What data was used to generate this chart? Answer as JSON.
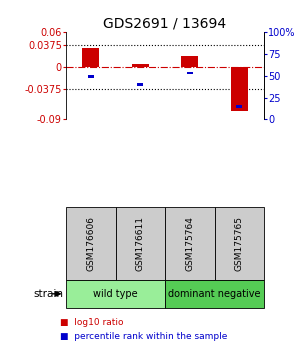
{
  "title": "GDS2691 / 13694",
  "samples": [
    "GSM176606",
    "GSM176611",
    "GSM175764",
    "GSM175765"
  ],
  "log10_ratio": [
    0.032,
    0.005,
    0.018,
    -0.075
  ],
  "percentile_rank": [
    49,
    40,
    53,
    15
  ],
  "ylim_left": [
    -0.09,
    0.06
  ],
  "ylim_right": [
    0,
    100
  ],
  "yticks_left": [
    -0.09,
    -0.0375,
    0,
    0.0375,
    0.06
  ],
  "yticks_right": [
    0,
    25,
    50,
    75,
    100
  ],
  "ytick_labels_left": [
    "-0.09",
    "-0.0375",
    "0",
    "0.0375",
    "0.06"
  ],
  "ytick_labels_right": [
    "0",
    "25",
    "50",
    "75",
    "100%"
  ],
  "hlines": [
    -0.0375,
    0.0375
  ],
  "zero_line": 0,
  "bar_color_red": "#cc0000",
  "bar_color_blue": "#0000cc",
  "zero_line_color": "#cc0000",
  "dotted_line_color": "#000000",
  "groups": [
    {
      "label": "wild type",
      "color": "#99ee99"
    },
    {
      "label": "dominant negative",
      "color": "#55cc55"
    }
  ],
  "strain_label": "strain",
  "legend_red": "log10 ratio",
  "legend_blue": "percentile rank within the sample",
  "bar_width": 0.35,
  "blue_bar_width": 0.12,
  "sample_box_color": "#cccccc"
}
